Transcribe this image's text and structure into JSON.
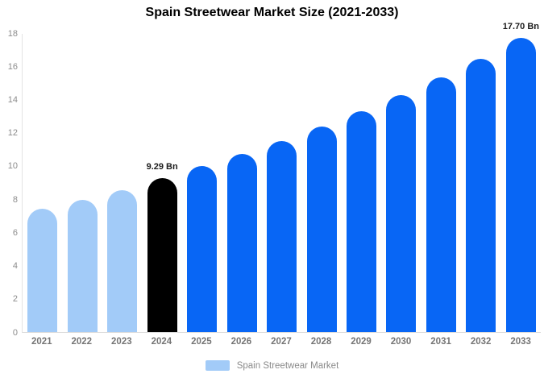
{
  "title": "Spain Streetwear Market Size (2021-2033)",
  "colors": {
    "historical": "#A2CBF8",
    "base_year": "#000000",
    "forecast": "#0866F5",
    "axis_text": "#8c8c8c",
    "x_label_text": "#757575",
    "annotation_text": "#1c1c1c"
  },
  "legend": {
    "label": "Spain Streetwear Market",
    "swatch_color": "#A2CBF8"
  },
  "y_axis": {
    "ticks": [
      0,
      2,
      4,
      6,
      8,
      10,
      12,
      14,
      16,
      18
    ],
    "max": 18
  },
  "chart_data": {
    "type": "bar",
    "title": "Spain Streetwear Market Size (2021-2033)",
    "categories": [
      "2021",
      "2022",
      "2023",
      "2024",
      "2025",
      "2026",
      "2027",
      "2028",
      "2029",
      "2030",
      "2031",
      "2032",
      "2033"
    ],
    "values": [
      7.4,
      7.95,
      8.55,
      9.29,
      9.98,
      10.72,
      11.52,
      12.37,
      13.29,
      14.27,
      15.33,
      16.47,
      17.7
    ],
    "unit": "Bn",
    "bar_roles": [
      "historical",
      "historical",
      "historical",
      "base_year",
      "forecast",
      "forecast",
      "forecast",
      "forecast",
      "forecast",
      "forecast",
      "forecast",
      "forecast",
      "forecast"
    ],
    "bar_labels": [
      "",
      "",
      "",
      "9.29 Bn",
      "",
      "",
      "",
      "",
      "",
      "",
      "",
      "",
      "17.70 Bn"
    ],
    "xlabel": "",
    "ylabel": "",
    "ylim": [
      0,
      18
    ],
    "grid": false,
    "legend_entries": [
      "Spain Streetwear Market"
    ],
    "legend_position": "bottom"
  }
}
